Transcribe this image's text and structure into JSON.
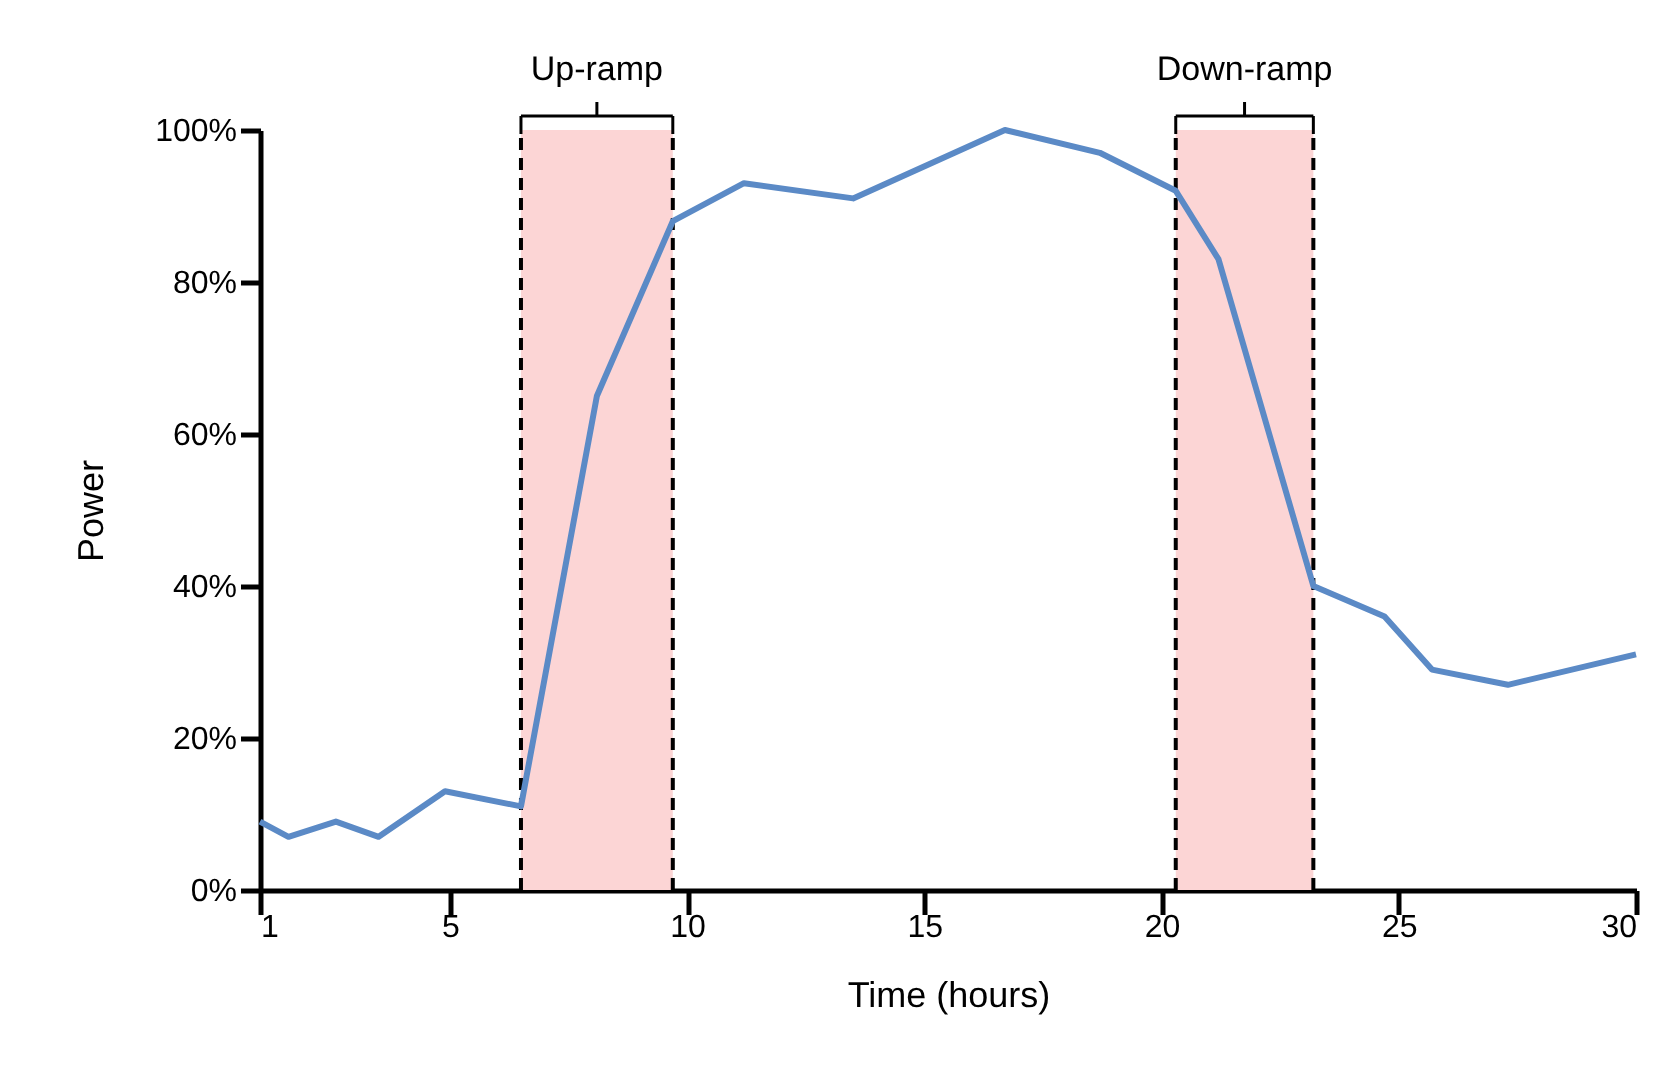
{
  "chart_data": {
    "type": "line",
    "xlabel": "Time (hours)",
    "ylabel": "Power",
    "x": [
      1,
      1.6,
      2.6,
      3.5,
      4.9,
      6.5,
      8.1,
      9.7,
      11.2,
      13.5,
      16.7,
      18.7,
      20.3,
      21.2,
      23.2,
      24.7,
      25.7,
      27.3,
      30
    ],
    "series": [
      {
        "color": "#5b8ac6",
        "values": [
          9,
          7,
          9,
          7,
          13,
          11,
          65,
          88,
          93,
          91,
          100,
          97,
          92,
          83,
          40,
          36,
          29,
          27,
          31
        ]
      }
    ],
    "xlim": [
      1,
      30
    ],
    "xticks": [
      1,
      5,
      10,
      15,
      20,
      25,
      30
    ],
    "ylim": [
      0,
      100
    ],
    "yticks": [
      {
        "value": 0,
        "label": "0%"
      },
      {
        "value": 20,
        "label": "20%"
      },
      {
        "value": 40,
        "label": "40%"
      },
      {
        "value": 60,
        "label": "60%"
      },
      {
        "value": 80,
        "label": "80%"
      },
      {
        "value": 100,
        "label": "100%"
      }
    ],
    "bands": [
      {
        "axis": "x",
        "from": 6.5,
        "to": 9.7,
        "label": "Up-ramp",
        "color": "#fcd5d5"
      },
      {
        "axis": "x",
        "from": 20.3,
        "to": 23.2,
        "label": "Down-ramp",
        "color": "#fcd5d5"
      }
    ],
    "grid": false,
    "marker": "none",
    "line_style": "solid"
  }
}
